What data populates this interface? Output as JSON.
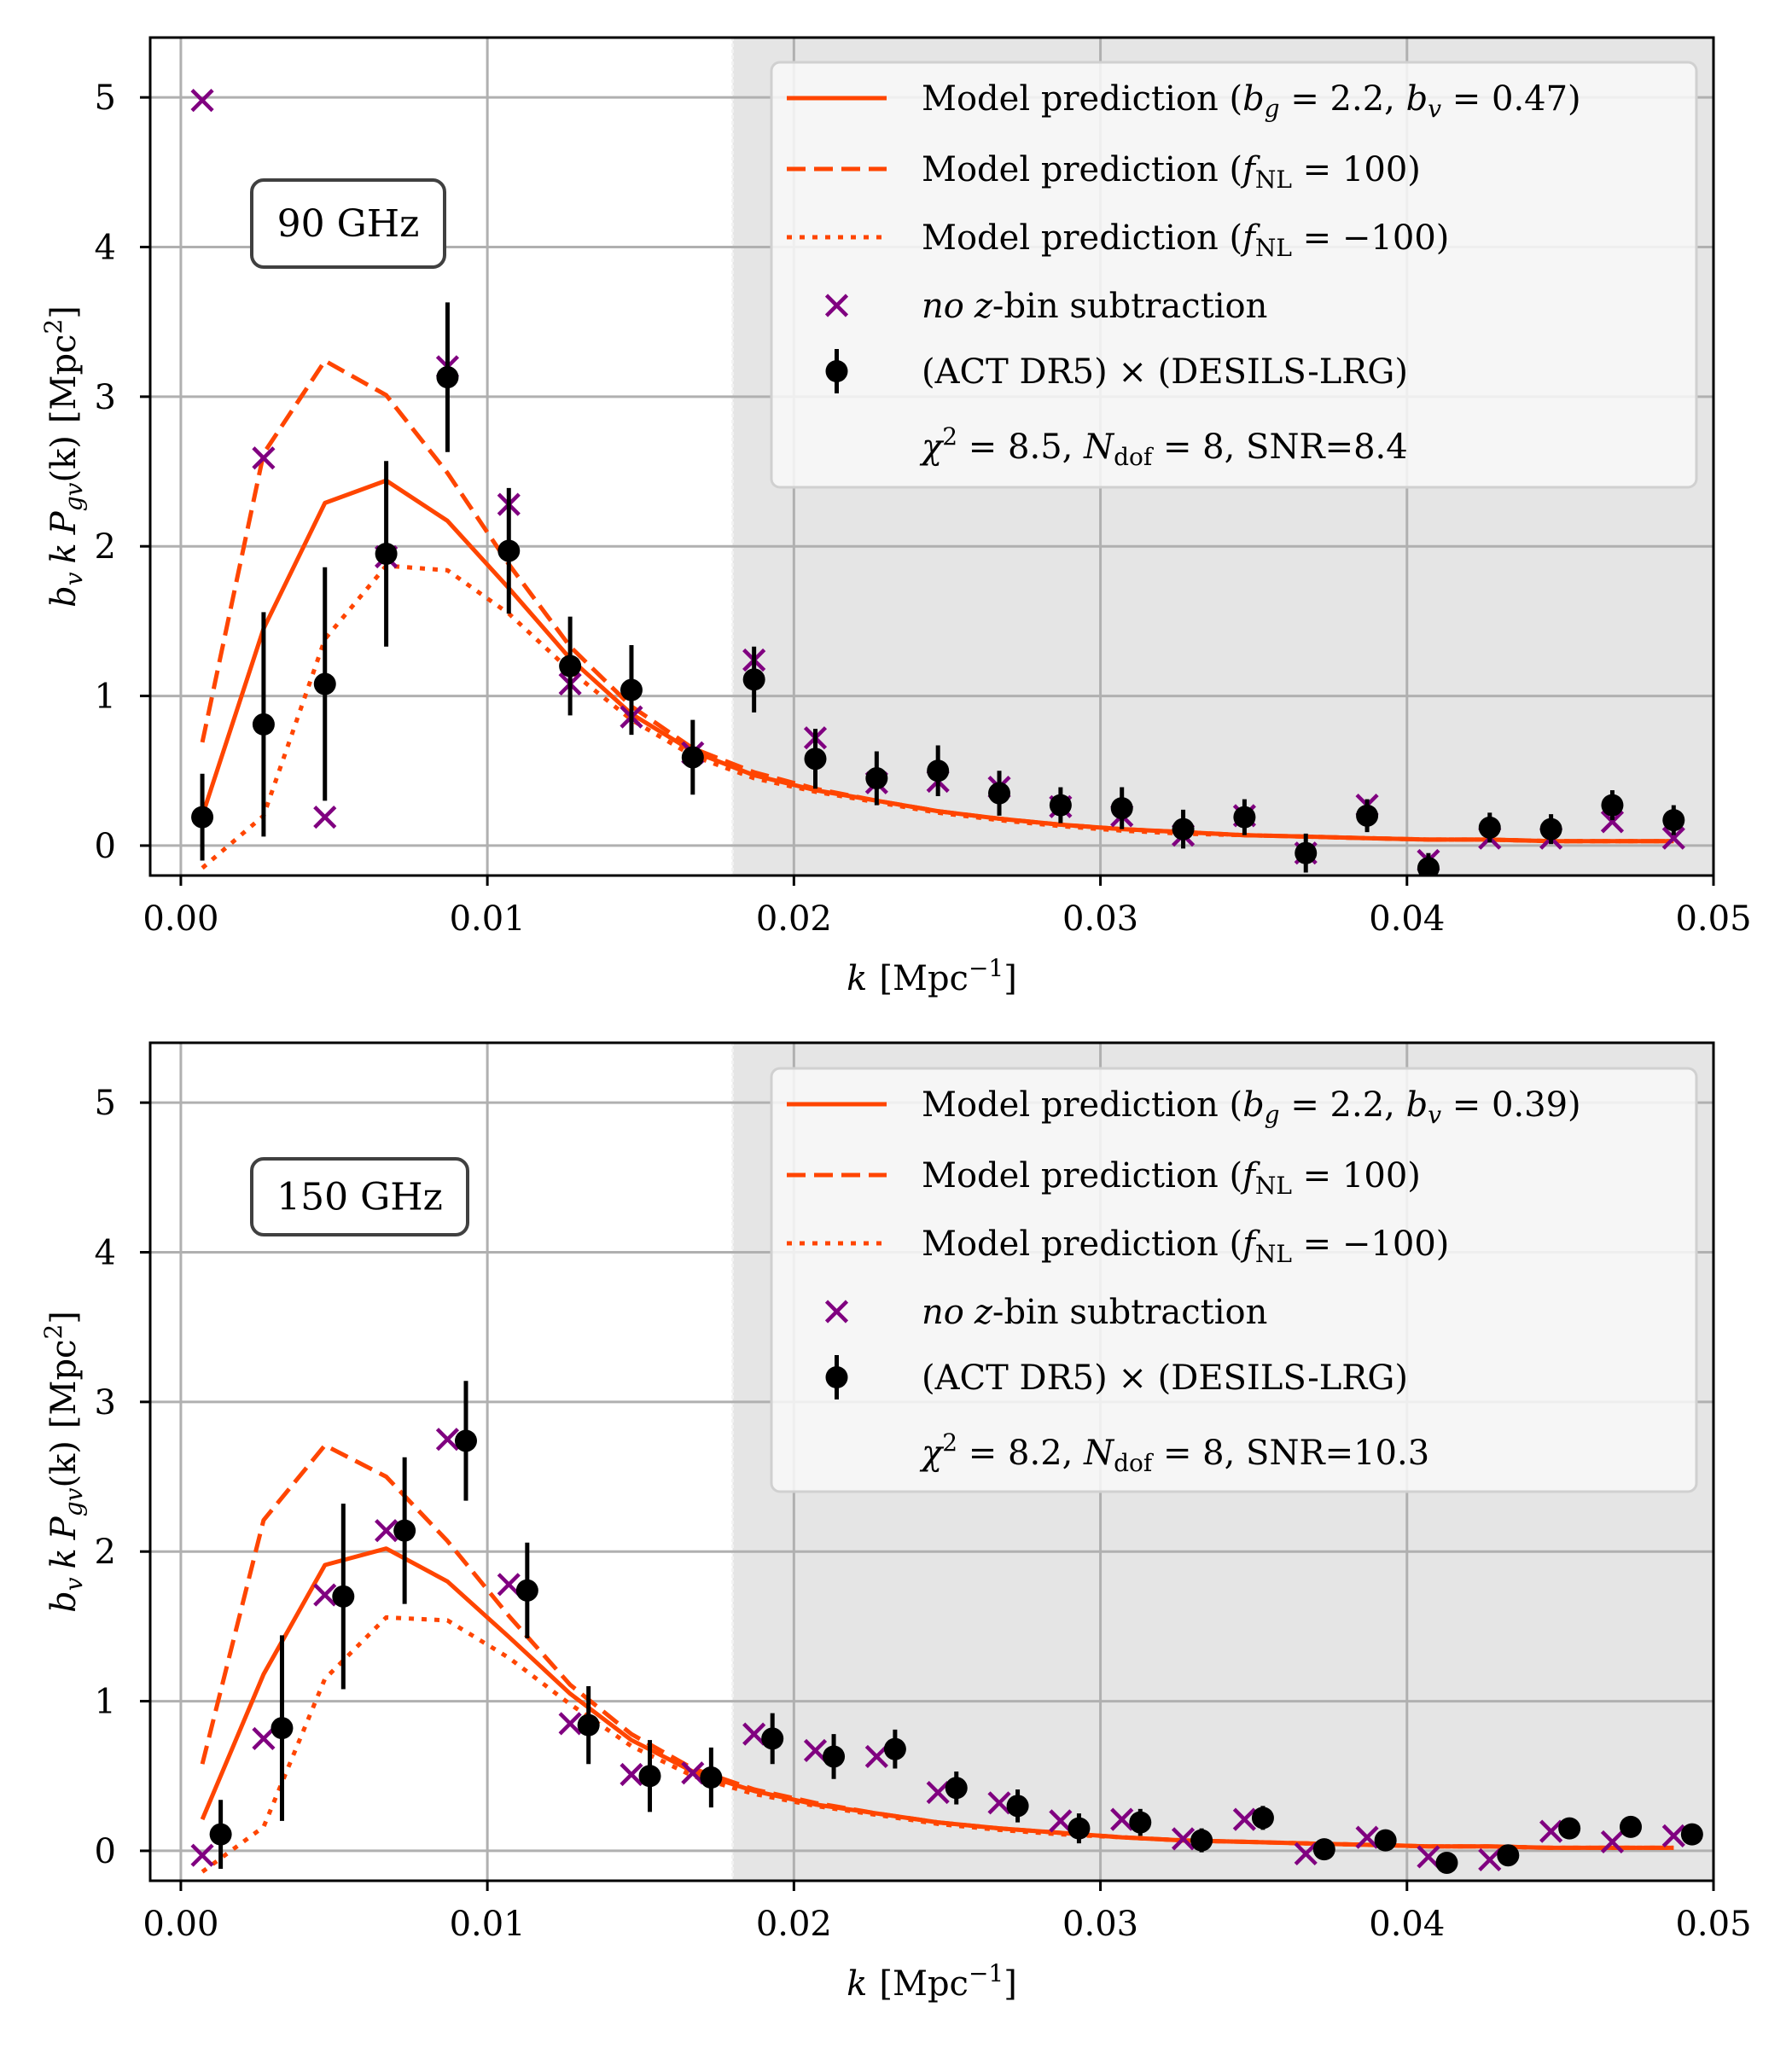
{
  "colors": {
    "model": "#ff4500",
    "cross": "#800080",
    "data": "#000000",
    "grid": "#b0b0b0",
    "shade": "#e5e5e5",
    "legend_bg": "#f9f9f9"
  },
  "chart_data": [
    {
      "type": "line",
      "panel": "top",
      "annotation": "90 GHz",
      "xlabel": "k [Mpc⁻¹]",
      "xlabel_parts": {
        "var": "k",
        "unit": "[Mpc",
        "sup": "−1",
        "close": "]"
      },
      "ylabel": "b_v k P_gv(k) [Mpc²]",
      "ylabel_parts": {
        "b": "b",
        "bsub": "v",
        "k": "k",
        "P": "P",
        "Psub": "gv",
        "arg": "(k)",
        "unit": "[Mpc",
        "sup": "2",
        "close": "]"
      },
      "xlim": [
        -0.001,
        0.05
      ],
      "ylim": [
        -0.2,
        5.4
      ],
      "xticks": [
        "0.00",
        "0.01",
        "0.02",
        "0.03",
        "0.04",
        "0.05"
      ],
      "xtick_values": [
        0.0,
        0.01,
        0.02,
        0.03,
        0.04,
        0.05
      ],
      "yticks": [
        "0",
        "1",
        "2",
        "3",
        "4",
        "5"
      ],
      "ytick_values": [
        0,
        1,
        2,
        3,
        4,
        5
      ],
      "grid": true,
      "shaded_region_kmin": 0.018,
      "legend_position": "top-right",
      "legend": [
        {
          "label": "Model prediction (b_g = 2.2,  b_v = 0.47)",
          "prefix": "Model prediction (",
          "math": "b",
          "sub": "g",
          "mid": " = 2.2,  ",
          "math2": "b",
          "sub2": "v",
          "suffix": " = 0.47)"
        },
        {
          "label": "Model prediction (f_NL = 100)",
          "prefix": "Model prediction (",
          "math": "f",
          "sub": "NL",
          "suffix": " = 100)"
        },
        {
          "label": "Model prediction (f_NL = −100)",
          "prefix": "Model prediction (",
          "math": "f",
          "sub": "NL",
          "suffix": " = −100)"
        },
        {
          "label": "no z-bin subtraction",
          "ital1": "no",
          "ital2": "z",
          "rest": "-bin subtraction"
        },
        {
          "label": "(ACT DR5) × (DESILS-LRG)"
        },
        {
          "label": "χ² = 8.5, N_dof = 8, SNR=8.4",
          "chi": "χ",
          "chisup": "2",
          "a": " = 8.5, ",
          "N": "N",
          "Nsub": "dof",
          "b": " = 8, SNR=8.4"
        }
      ],
      "model_k": [
        0.0007,
        0.0027,
        0.0047,
        0.0067,
        0.0087,
        0.0107,
        0.0127,
        0.0147,
        0.0167,
        0.0187,
        0.0207,
        0.0227,
        0.0247,
        0.0267,
        0.0287,
        0.0307,
        0.0327,
        0.0347,
        0.0367,
        0.0387,
        0.0407,
        0.0427,
        0.0447,
        0.0467,
        0.0487
      ],
      "series": [
        {
          "name": "Model prediction (b_g = 2.2, b_v = 0.47)",
          "style": "solid",
          "values": [
            0.2,
            1.45,
            2.29,
            2.44,
            2.17,
            1.72,
            1.25,
            0.88,
            0.63,
            0.47,
            0.37,
            0.3,
            0.23,
            0.18,
            0.14,
            0.11,
            0.09,
            0.07,
            0.06,
            0.05,
            0.04,
            0.04,
            0.03,
            0.03,
            0.03
          ]
        },
        {
          "name": "Model prediction (f_NL = 100)",
          "style": "dashed",
          "values": [
            0.69,
            2.62,
            3.24,
            3.01,
            2.49,
            1.88,
            1.33,
            0.93,
            0.65,
            0.49,
            0.38,
            0.3,
            0.23,
            0.18,
            0.14,
            0.11,
            0.09,
            0.07,
            0.06,
            0.05,
            0.04,
            0.04,
            0.03,
            0.03,
            0.03
          ]
        },
        {
          "name": "Model prediction (f_NL = -100)",
          "style": "dotted",
          "values": [
            -0.15,
            0.2,
            1.38,
            1.87,
            1.84,
            1.55,
            1.17,
            0.84,
            0.6,
            0.45,
            0.36,
            0.29,
            0.22,
            0.17,
            0.13,
            0.1,
            0.08,
            0.07,
            0.06,
            0.05,
            0.04,
            0.04,
            0.03,
            0.03,
            0.03
          ]
        }
      ],
      "no_zbin": {
        "k": [
          0.0007,
          0.0027,
          0.0047,
          0.0067,
          0.0087,
          0.0107,
          0.0127,
          0.0147,
          0.0167,
          0.0187,
          0.0207,
          0.0227,
          0.0247,
          0.0267,
          0.0287,
          0.0307,
          0.0327,
          0.0347,
          0.0367,
          0.0387,
          0.0407,
          0.0427,
          0.0447,
          0.0467,
          0.0487
        ],
        "values": [
          4.98,
          2.59,
          0.19,
          1.93,
          3.2,
          2.28,
          1.08,
          0.86,
          0.62,
          1.24,
          0.72,
          0.42,
          0.43,
          0.39,
          0.26,
          0.2,
          0.07,
          0.2,
          -0.05,
          0.27,
          -0.1,
          0.05,
          0.05,
          0.16,
          0.05
        ]
      },
      "data": {
        "k": [
          0.0007,
          0.0027,
          0.0047,
          0.0067,
          0.0087,
          0.0107,
          0.0127,
          0.0147,
          0.0167,
          0.0187,
          0.0207,
          0.0227,
          0.0247,
          0.0267,
          0.0287,
          0.0307,
          0.0327,
          0.0347,
          0.0367,
          0.0387,
          0.0407,
          0.0427,
          0.0447,
          0.0467,
          0.0487
        ],
        "values": [
          0.19,
          0.81,
          1.08,
          1.95,
          3.13,
          1.97,
          1.2,
          1.04,
          0.59,
          1.11,
          0.58,
          0.45,
          0.5,
          0.35,
          0.27,
          0.25,
          0.11,
          0.19,
          -0.05,
          0.2,
          -0.15,
          0.12,
          0.11,
          0.27,
          0.17
        ],
        "errors": [
          0.29,
          0.75,
          0.78,
          0.62,
          0.5,
          0.42,
          0.33,
          0.3,
          0.25,
          0.22,
          0.2,
          0.18,
          0.17,
          0.15,
          0.12,
          0.14,
          0.13,
          0.12,
          0.13,
          0.11,
          0.1,
          0.1,
          0.1,
          0.1,
          0.1
        ]
      }
    },
    {
      "type": "line",
      "panel": "bottom",
      "annotation": "150 GHz",
      "xlabel": "k [Mpc⁻¹]",
      "xlabel_parts": {
        "var": "k",
        "unit": "[Mpc",
        "sup": "−1",
        "close": "]"
      },
      "ylabel": "b_v k P_gv(k) [Mpc²]",
      "ylabel_parts": {
        "b": "b",
        "bsub": "v",
        "k": "k",
        "P": "P",
        "Psub": "gv",
        "arg": "(k)",
        "unit": "[Mpc",
        "sup": "2",
        "close": "]"
      },
      "xlim": [
        -0.001,
        0.05
      ],
      "ylim": [
        -0.2,
        5.4
      ],
      "xticks": [
        "0.00",
        "0.01",
        "0.02",
        "0.03",
        "0.04",
        "0.05"
      ],
      "xtick_values": [
        0.0,
        0.01,
        0.02,
        0.03,
        0.04,
        0.05
      ],
      "yticks": [
        "0",
        "1",
        "2",
        "3",
        "4",
        "5"
      ],
      "ytick_values": [
        0,
        1,
        2,
        3,
        4,
        5
      ],
      "grid": true,
      "shaded_region_kmin": 0.018,
      "legend_position": "top-right",
      "legend": [
        {
          "label": "Model prediction (b_g = 2.2,  b_v = 0.39)",
          "prefix": "Model prediction (",
          "math": "b",
          "sub": "g",
          "mid": " = 2.2,  ",
          "math2": "b",
          "sub2": "v",
          "suffix": " = 0.39)"
        },
        {
          "label": "Model prediction (f_NL = 100)",
          "prefix": "Model prediction (",
          "math": "f",
          "sub": "NL",
          "suffix": " = 100)"
        },
        {
          "label": "Model prediction (f_NL = −100)",
          "prefix": "Model prediction (",
          "math": "f",
          "sub": "NL",
          "suffix": " = −100)"
        },
        {
          "label": "no z-bin subtraction",
          "ital1": "no",
          "ital2": "z",
          "rest": "-bin subtraction"
        },
        {
          "label": "(ACT DR5) × (DESILS-LRG)"
        },
        {
          "label": "χ² = 8.2, N_dof = 8, SNR=10.3",
          "chi": "χ",
          "chisup": "2",
          "a": " = 8.2, ",
          "N": "N",
          "Nsub": "dof",
          "b": " = 8, SNR=10.3"
        }
      ],
      "model_k": [
        0.0007,
        0.0027,
        0.0047,
        0.0067,
        0.0087,
        0.0107,
        0.0127,
        0.0147,
        0.0167,
        0.0187,
        0.0207,
        0.0227,
        0.0247,
        0.0267,
        0.0287,
        0.0307,
        0.0327,
        0.0347,
        0.0367,
        0.0387,
        0.0407,
        0.0427,
        0.0447,
        0.0467,
        0.0487
      ],
      "series": [
        {
          "name": "Model prediction (b_g = 2.2, b_v = 0.39)",
          "style": "solid",
          "values": [
            0.21,
            1.18,
            1.91,
            2.02,
            1.8,
            1.43,
            1.05,
            0.74,
            0.53,
            0.4,
            0.31,
            0.25,
            0.19,
            0.15,
            0.12,
            0.09,
            0.07,
            0.06,
            0.05,
            0.04,
            0.03,
            0.03,
            0.02,
            0.02,
            0.02
          ]
        },
        {
          "name": "Model prediction (f_NL = 100)",
          "style": "dashed",
          "values": [
            0.58,
            2.21,
            2.71,
            2.5,
            2.07,
            1.57,
            1.11,
            0.78,
            0.55,
            0.41,
            0.32,
            0.25,
            0.19,
            0.15,
            0.12,
            0.09,
            0.07,
            0.06,
            0.05,
            0.04,
            0.03,
            0.03,
            0.02,
            0.02,
            0.02
          ]
        },
        {
          "name": "Model prediction (f_NL = -100)",
          "style": "dotted",
          "values": [
            -0.14,
            0.16,
            1.15,
            1.56,
            1.54,
            1.29,
            0.98,
            0.7,
            0.5,
            0.38,
            0.3,
            0.24,
            0.18,
            0.14,
            0.11,
            0.09,
            0.07,
            0.06,
            0.05,
            0.04,
            0.03,
            0.03,
            0.02,
            0.02,
            0.02
          ]
        }
      ],
      "no_zbin": {
        "k": [
          0.0007,
          0.0027,
          0.0047,
          0.0067,
          0.0087,
          0.0107,
          0.0127,
          0.0147,
          0.0167,
          0.0187,
          0.0207,
          0.0227,
          0.0247,
          0.0267,
          0.0287,
          0.0307,
          0.0327,
          0.0347,
          0.0367,
          0.0387,
          0.0407,
          0.0427,
          0.0447,
          0.0467,
          0.0487
        ],
        "values": [
          -0.03,
          0.75,
          1.71,
          2.14,
          2.75,
          1.78,
          0.85,
          0.51,
          0.52,
          0.78,
          0.67,
          0.63,
          0.39,
          0.32,
          0.2,
          0.21,
          0.08,
          0.21,
          -0.02,
          0.09,
          -0.04,
          -0.06,
          0.13,
          0.06,
          0.1
        ]
      },
      "data": {
        "k": [
          0.0013,
          0.0033,
          0.0053,
          0.0073,
          0.0093,
          0.0113,
          0.0133,
          0.0153,
          0.0173,
          0.0193,
          0.0213,
          0.0233,
          0.0253,
          0.0273,
          0.0293,
          0.0313,
          0.0333,
          0.0353,
          0.0373,
          0.0393,
          0.0413,
          0.0433,
          0.0453,
          0.0473,
          0.0493
        ],
        "values": [
          0.11,
          0.82,
          1.7,
          2.14,
          2.74,
          1.74,
          0.84,
          0.5,
          0.49,
          0.75,
          0.63,
          0.68,
          0.42,
          0.3,
          0.15,
          0.19,
          0.07,
          0.22,
          0.01,
          0.07,
          -0.08,
          -0.03,
          0.15,
          0.16,
          0.11
        ],
        "errors": [
          0.23,
          0.62,
          0.62,
          0.49,
          0.4,
          0.32,
          0.26,
          0.24,
          0.2,
          0.17,
          0.15,
          0.13,
          0.11,
          0.11,
          0.1,
          0.09,
          0.08,
          0.08,
          0.07,
          0.07,
          0.07,
          0.07,
          0.06,
          0.06,
          0.06
        ]
      }
    }
  ]
}
